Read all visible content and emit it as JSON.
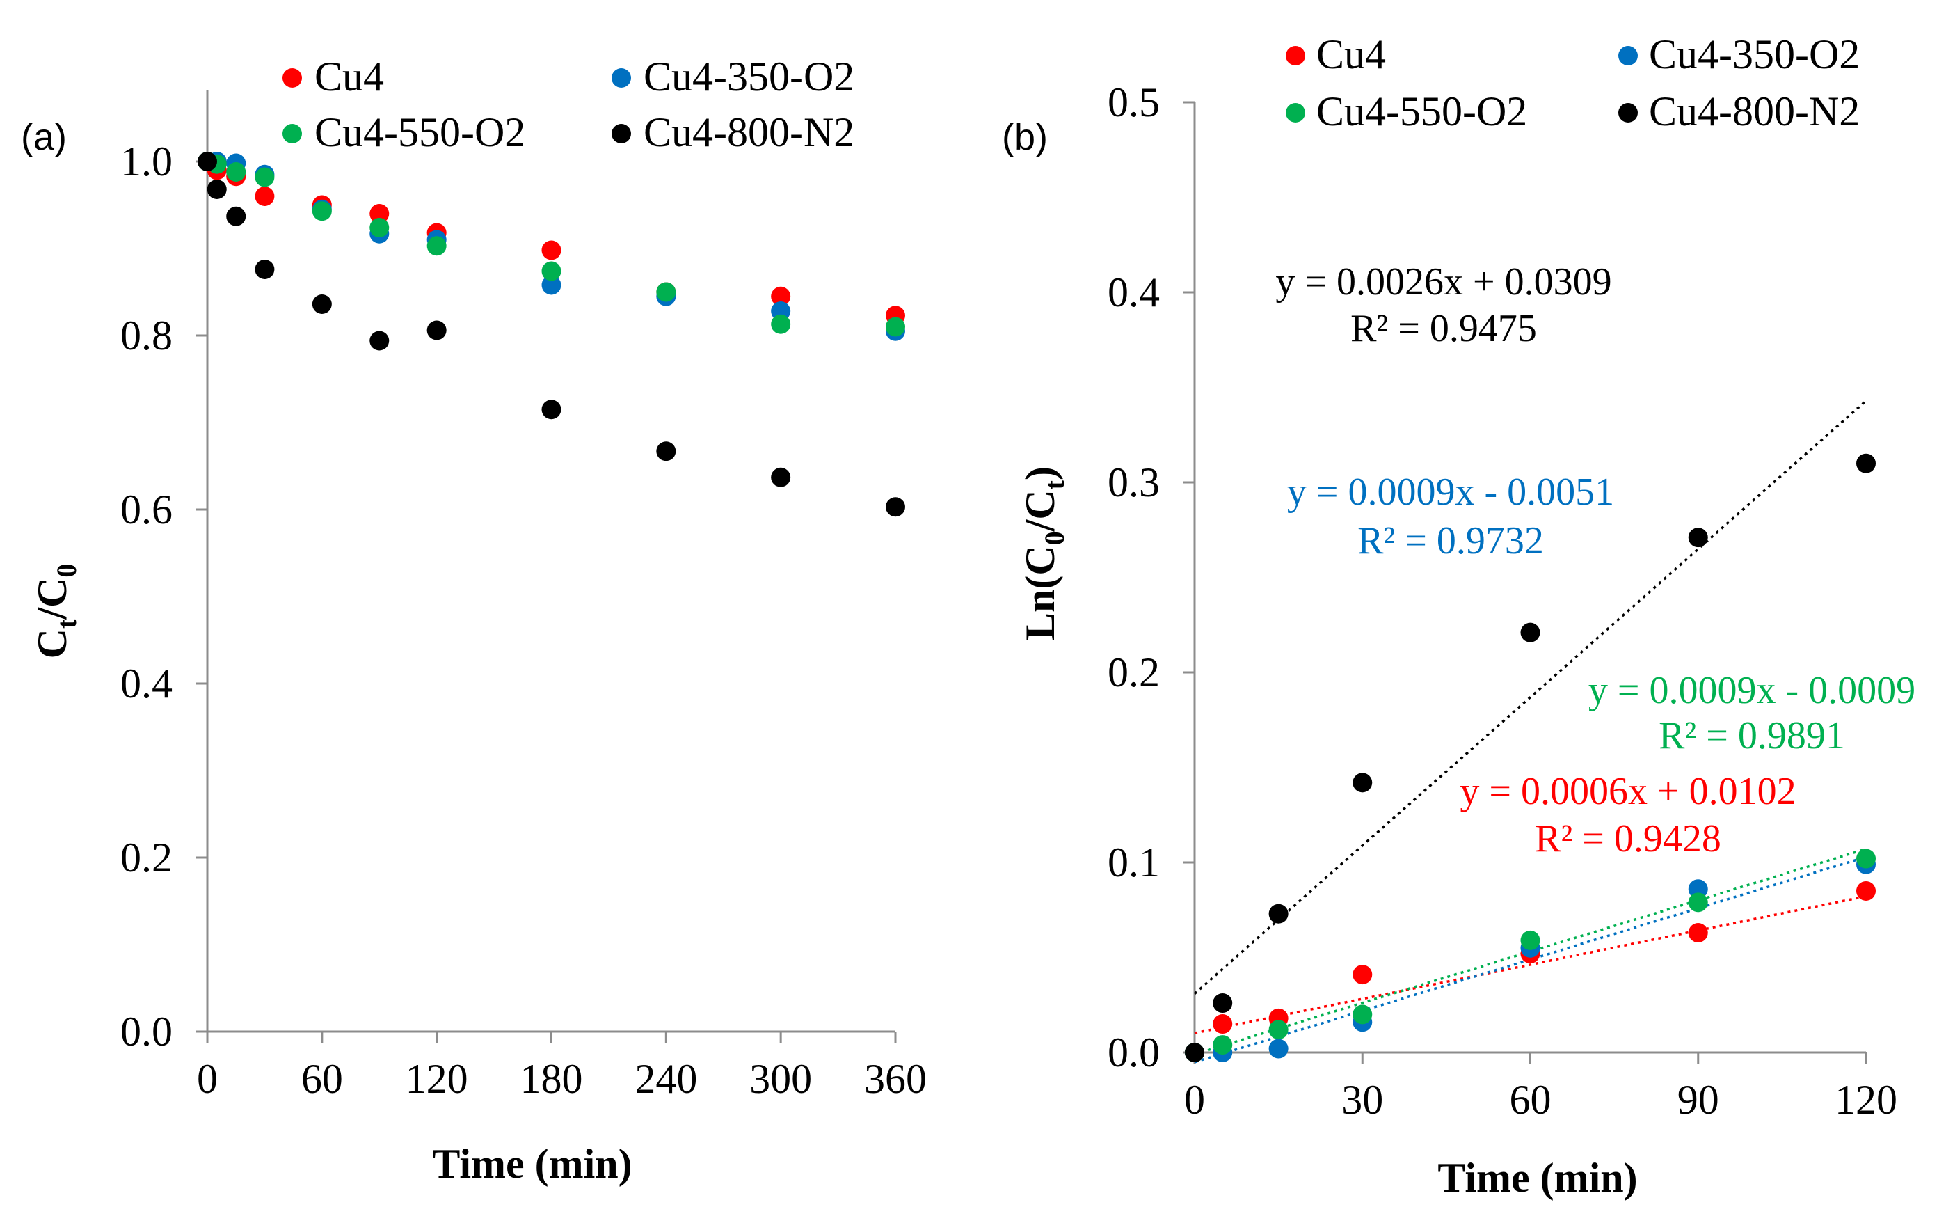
{
  "chart_data": [
    {
      "panel_label": "(a)",
      "type": "scatter",
      "xlabel": "Time (min)",
      "ylabel_main": "C",
      "ylabel_sub1": "t",
      "ylabel_sep": "/C",
      "ylabel_sub2": "0",
      "xlim": [
        0,
        360
      ],
      "ylim": [
        0,
        1.1
      ],
      "xticks": [
        0,
        60,
        120,
        180,
        240,
        300,
        360
      ],
      "xtick_labels": [
        "0",
        "60",
        "120",
        "180",
        "240",
        "300",
        "360"
      ],
      "yticks": [
        0,
        0.2,
        0.4,
        0.6,
        0.8,
        1.0
      ],
      "ytick_labels": [
        "0.0",
        "0.2",
        "0.4",
        "0.6",
        "0.8",
        "1.0"
      ],
      "legend_position": "top",
      "series": [
        {
          "name": "Cu4",
          "color": "#ff0000",
          "x": [
            0,
            5,
            15,
            30,
            60,
            90,
            120,
            180,
            240,
            300,
            360
          ],
          "y": [
            1.0,
            0.99,
            0.983,
            0.96,
            0.95,
            0.94,
            0.918,
            0.898,
            0.85,
            0.845,
            0.823
          ]
        },
        {
          "name": "Cu4-350-O2",
          "color": "#0070c0",
          "x": [
            0,
            5,
            15,
            30,
            60,
            90,
            120,
            180,
            240,
            300,
            360
          ],
          "y": [
            1.0,
            1.0,
            0.998,
            0.985,
            0.945,
            0.917,
            0.91,
            0.858,
            0.845,
            0.828,
            0.805
          ]
        },
        {
          "name": "Cu4-550-O2",
          "color": "#00b050",
          "x": [
            0,
            5,
            15,
            30,
            60,
            90,
            120,
            180,
            240,
            300,
            360
          ],
          "y": [
            1.0,
            0.997,
            0.988,
            0.982,
            0.943,
            0.924,
            0.903,
            0.874,
            0.85,
            0.813,
            0.81
          ]
        },
        {
          "name": "Cu4-800-N2",
          "color": "#000000",
          "x": [
            0,
            5,
            15,
            30,
            60,
            90,
            120,
            180,
            240,
            300,
            360
          ],
          "y": [
            1.0,
            0.968,
            0.937,
            0.876,
            0.836,
            0.794,
            0.806,
            0.715,
            0.667,
            0.637,
            0.603
          ]
        }
      ]
    },
    {
      "panel_label": "(b)",
      "type": "scatter",
      "xlabel": "Time (min)",
      "ylabel_main": "Ln(C",
      "ylabel_sub1": "0",
      "ylabel_sep": "/C",
      "ylabel_sub2": "t",
      "ylabel_end": ")",
      "xlim": [
        0,
        120
      ],
      "ylim": [
        0,
        0.5
      ],
      "xticks": [
        0,
        30,
        60,
        90,
        120
      ],
      "xtick_labels": [
        "0",
        "30",
        "60",
        "90",
        "120"
      ],
      "yticks": [
        0,
        0.1,
        0.2,
        0.3,
        0.4,
        0.5
      ],
      "ytick_labels": [
        "0.0",
        "0.1",
        "0.2",
        "0.3",
        "0.4",
        "0.5"
      ],
      "legend_position": "top",
      "series": [
        {
          "name": "Cu4",
          "color": "#ff0000",
          "x": [
            0,
            5,
            15,
            30,
            60,
            90,
            120
          ],
          "y": [
            0,
            0.015,
            0.018,
            0.041,
            0.052,
            0.063,
            0.085
          ],
          "trend": {
            "slope": 0.0006,
            "intercept": 0.0102,
            "equation": "y = 0.0006x + 0.0102",
            "r2": "R² = 0.9428"
          }
        },
        {
          "name": "Cu4-350-O2",
          "color": "#0070c0",
          "x": [
            0,
            5,
            15,
            30,
            60,
            90,
            120
          ],
          "y": [
            0,
            0.0,
            0.002,
            0.016,
            0.055,
            0.086,
            0.099
          ],
          "trend": {
            "slope": 0.0009,
            "intercept": -0.0051,
            "equation": "y = 0.0009x - 0.0051",
            "r2": "R² = 0.9732"
          }
        },
        {
          "name": "Cu4-550-O2",
          "color": "#00b050",
          "x": [
            0,
            5,
            15,
            30,
            60,
            90,
            120
          ],
          "y": [
            0,
            0.004,
            0.012,
            0.02,
            0.059,
            0.079,
            0.102
          ],
          "trend": {
            "slope": 0.0009,
            "intercept": -0.0009,
            "equation": "y = 0.0009x - 0.0009",
            "r2": "R² = 0.9891"
          }
        },
        {
          "name": "Cu4-800-N2",
          "color": "#000000",
          "x": [
            0,
            5,
            15,
            30,
            60,
            90,
            120
          ],
          "y": [
            0,
            0.026,
            0.073,
            0.142,
            0.221,
            0.271,
            0.31
          ],
          "trend": {
            "slope": 0.0026,
            "intercept": 0.0309,
            "equation": "y = 0.0026x + 0.0309",
            "r2": "R² = 0.9475"
          }
        }
      ]
    }
  ]
}
